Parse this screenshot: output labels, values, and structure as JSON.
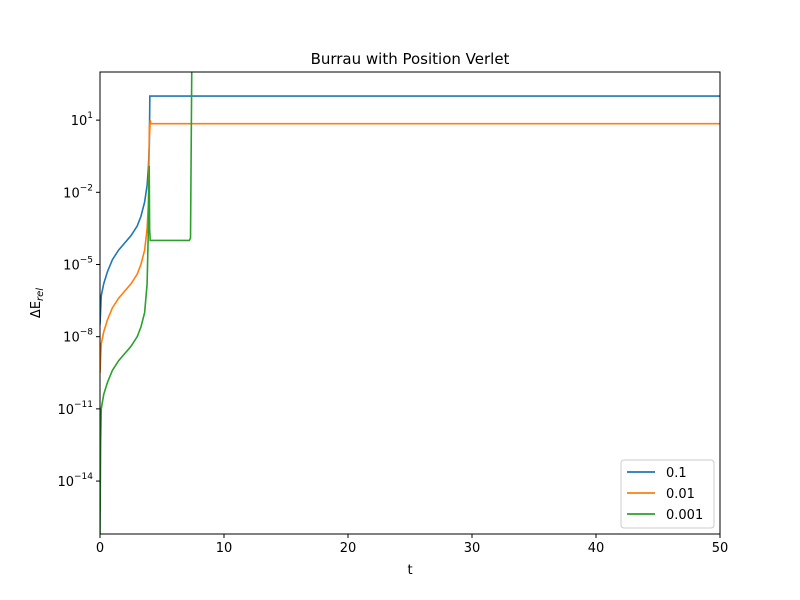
{
  "chart_data": {
    "type": "line",
    "title": "Burrau with Position Verlet",
    "xlabel": "t",
    "ylabel_base": "ΔE",
    "ylabel_sub": "rel",
    "xlim": [
      0,
      50
    ],
    "ylim_log10": [
      -16.2,
      3.0
    ],
    "yscale": "log",
    "grid": false,
    "legend_position": "lower right",
    "x_ticks": [
      0,
      10,
      20,
      30,
      40,
      50
    ],
    "y_tick_exponents": [
      1,
      -2,
      -5,
      -8,
      -11,
      -14
    ],
    "series": [
      {
        "name": "0.1",
        "color": "#1f77b4",
        "points": [
          [
            0.0,
            -7.5
          ],
          [
            0.1,
            -6.3
          ],
          [
            0.3,
            -5.8
          ],
          [
            0.6,
            -5.3
          ],
          [
            1.0,
            -4.8
          ],
          [
            1.5,
            -4.4
          ],
          [
            2.0,
            -4.1
          ],
          [
            2.5,
            -3.8
          ],
          [
            3.0,
            -3.4
          ],
          [
            3.3,
            -3.0
          ],
          [
            3.6,
            -2.4
          ],
          [
            3.8,
            -1.7
          ],
          [
            3.9,
            -1.0
          ],
          [
            3.98,
            0.0
          ],
          [
            4.02,
            2.0
          ],
          [
            10.0,
            2.0
          ],
          [
            20.0,
            2.0
          ],
          [
            30.0,
            2.0
          ],
          [
            40.0,
            2.0
          ],
          [
            50.0,
            2.0
          ]
        ]
      },
      {
        "name": "0.01",
        "color": "#ff7f0e",
        "points": [
          [
            0.0,
            -9.5
          ],
          [
            0.1,
            -8.3
          ],
          [
            0.3,
            -7.8
          ],
          [
            0.6,
            -7.3
          ],
          [
            1.0,
            -6.8
          ],
          [
            1.5,
            -6.4
          ],
          [
            2.0,
            -6.1
          ],
          [
            2.5,
            -5.8
          ],
          [
            3.0,
            -5.4
          ],
          [
            3.3,
            -5.0
          ],
          [
            3.6,
            -4.4
          ],
          [
            3.8,
            -3.5
          ],
          [
            3.9,
            -2.5
          ],
          [
            3.95,
            -0.8
          ],
          [
            3.98,
            0.8
          ],
          [
            4.0,
            0.4
          ],
          [
            4.05,
            1.0
          ],
          [
            4.1,
            0.85
          ],
          [
            10.0,
            0.85
          ],
          [
            20.0,
            0.85
          ],
          [
            30.0,
            0.85
          ],
          [
            40.0,
            0.85
          ],
          [
            50.0,
            0.85
          ]
        ]
      },
      {
        "name": "0.001",
        "color": "#2ca02c",
        "points": [
          [
            0.0,
            -16.3
          ],
          [
            0.05,
            -12.5
          ],
          [
            0.1,
            -11.0
          ],
          [
            0.3,
            -10.4
          ],
          [
            0.6,
            -9.9
          ],
          [
            1.0,
            -9.4
          ],
          [
            1.5,
            -9.0
          ],
          [
            2.0,
            -8.7
          ],
          [
            2.5,
            -8.4
          ],
          [
            3.0,
            -8.0
          ],
          [
            3.3,
            -7.6
          ],
          [
            3.6,
            -7.0
          ],
          [
            3.8,
            -5.8
          ],
          [
            3.9,
            -3.5
          ],
          [
            3.95,
            -1.5
          ],
          [
            3.97,
            -0.9
          ],
          [
            4.0,
            -3.5
          ],
          [
            4.05,
            -4.0
          ],
          [
            7.2,
            -4.0
          ],
          [
            7.3,
            -3.9
          ],
          [
            7.4,
            3.05
          ],
          [
            10.0,
            3.05
          ],
          [
            20.0,
            3.05
          ],
          [
            30.0,
            3.05
          ],
          [
            40.0,
            3.05
          ],
          [
            50.0,
            3.05
          ]
        ]
      }
    ]
  }
}
